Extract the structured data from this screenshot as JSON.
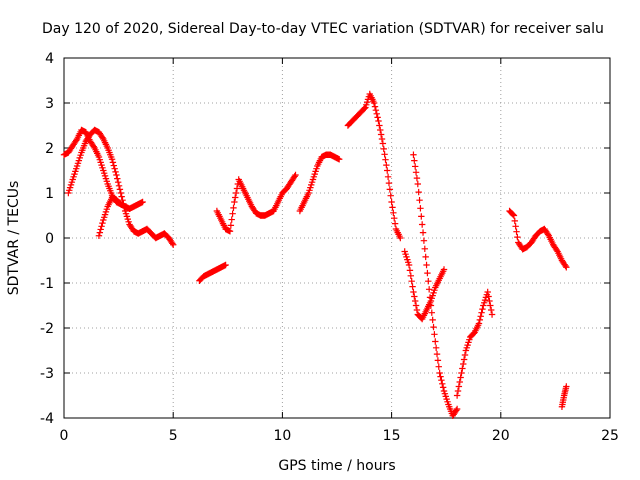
{
  "chart_data": {
    "type": "scatter",
    "title": "Day 120 of 2020, Sidereal Day-to-day VTEC variation (SDTVAR) for receiver salu",
    "xlabel": "GPS time / hours",
    "ylabel": "SDTVAR / TECUs",
    "xlim": [
      0,
      25
    ],
    "ylim": [
      -4,
      4
    ],
    "xticks": [
      "0",
      "5",
      "10",
      "15",
      "20",
      "25"
    ],
    "yticks": [
      "-4",
      "-3",
      "-2",
      "-1",
      "0",
      "1",
      "2",
      "3",
      "4"
    ],
    "grid": true,
    "marker": "+",
    "color": "#ff0000",
    "series": [
      {
        "segments": [
          {
            "x": [
              0.0,
              0.2,
              0.4,
              0.6,
              0.8,
              1.0,
              1.2,
              1.4,
              1.6,
              1.8,
              2.0,
              2.2,
              2.4,
              2.6,
              2.8,
              3.0,
              3.2,
              3.4,
              3.6
            ],
            "y": [
              1.85,
              1.9,
              2.05,
              2.2,
              2.4,
              2.35,
              2.15,
              2.0,
              1.8,
              1.5,
              1.2,
              0.95,
              0.8,
              0.75,
              0.7,
              0.65,
              0.7,
              0.75,
              0.8
            ]
          },
          {
            "x": [
              0.2,
              0.4,
              0.6,
              0.8,
              1.0,
              1.2,
              1.4,
              1.6,
              1.8,
              2.0,
              2.2,
              2.4,
              2.6,
              2.8,
              3.0,
              3.2,
              3.4,
              3.6,
              3.8,
              4.0,
              4.2,
              4.4,
              4.6,
              4.8,
              5.0
            ],
            "y": [
              1.0,
              1.3,
              1.6,
              1.9,
              2.15,
              2.3,
              2.4,
              2.35,
              2.2,
              2.0,
              1.75,
              1.4,
              1.0,
              0.6,
              0.3,
              0.15,
              0.1,
              0.15,
              0.2,
              0.1,
              0.0,
              0.05,
              0.1,
              0.0,
              -0.15
            ]
          },
          {
            "x": [
              1.6,
              1.8,
              2.0,
              2.2,
              2.4,
              2.6
            ],
            "y": [
              0.05,
              0.4,
              0.7,
              0.9,
              0.85,
              0.75
            ]
          },
          {
            "x": [
              6.2,
              6.4,
              6.6,
              6.8,
              7.0,
              7.2,
              7.4
            ],
            "y": [
              -0.95,
              -0.85,
              -0.8,
              -0.75,
              -0.7,
              -0.65,
              -0.6
            ]
          },
          {
            "x": [
              7.0,
              7.2,
              7.4,
              7.6,
              7.8,
              8.0,
              8.2,
              8.4,
              8.6,
              8.8,
              9.0,
              9.2,
              9.4,
              9.6,
              9.8,
              10.0,
              10.2,
              10.4,
              10.6
            ],
            "y": [
              0.6,
              0.4,
              0.2,
              0.15,
              0.8,
              1.3,
              1.1,
              0.9,
              0.7,
              0.55,
              0.5,
              0.5,
              0.55,
              0.6,
              0.8,
              1.0,
              1.1,
              1.25,
              1.4
            ]
          },
          {
            "x": [
              10.8,
              11.0,
              11.2,
              11.4,
              11.6,
              11.8,
              12.0,
              12.2,
              12.4,
              12.6
            ],
            "y": [
              0.6,
              0.8,
              1.0,
              1.3,
              1.6,
              1.8,
              1.85,
              1.85,
              1.8,
              1.75
            ]
          },
          {
            "x": [
              13.0,
              13.2,
              13.4,
              13.6,
              13.8,
              14.0,
              14.2,
              14.4,
              14.6,
              14.8,
              15.0,
              15.2,
              15.4
            ],
            "y": [
              2.5,
              2.6,
              2.7,
              2.8,
              2.9,
              3.2,
              3.0,
              2.6,
              2.1,
              1.5,
              0.8,
              0.2,
              0.0
            ]
          },
          {
            "x": [
              15.6,
              15.8,
              16.0,
              16.2,
              16.4,
              16.6,
              16.8,
              17.0,
              17.2,
              17.4
            ],
            "y": [
              -0.3,
              -0.6,
              -1.2,
              -1.7,
              -1.8,
              -1.6,
              -1.4,
              -1.1,
              -0.9,
              -0.7
            ]
          },
          {
            "x": [
              16.0,
              16.2,
              16.4,
              16.6,
              16.8,
              17.0,
              17.2,
              17.4,
              17.6,
              17.8,
              18.0
            ],
            "y": [
              1.85,
              1.2,
              0.3,
              -0.6,
              -1.5,
              -2.3,
              -3.0,
              -3.4,
              -3.7,
              -3.95,
              -3.8
            ]
          },
          {
            "x": [
              18.0,
              18.2,
              18.4,
              18.6,
              18.8,
              19.0,
              19.2,
              19.4,
              19.6
            ],
            "y": [
              -3.5,
              -3.0,
              -2.5,
              -2.2,
              -2.1,
              -1.9,
              -1.5,
              -1.2,
              -1.7
            ]
          },
          {
            "x": [
              20.4,
              20.6,
              20.8,
              21.0,
              21.2,
              21.4,
              21.6,
              21.8,
              22.0,
              22.2,
              22.4,
              22.6,
              22.8,
              23.0
            ],
            "y": [
              0.6,
              0.5,
              -0.1,
              -0.25,
              -0.2,
              -0.1,
              0.05,
              0.15,
              0.2,
              0.05,
              -0.15,
              -0.3,
              -0.5,
              -0.65
            ]
          },
          {
            "x": [
              22.8,
              22.9,
              23.0
            ],
            "y": [
              -3.75,
              -3.5,
              -3.3
            ]
          }
        ]
      }
    ]
  }
}
